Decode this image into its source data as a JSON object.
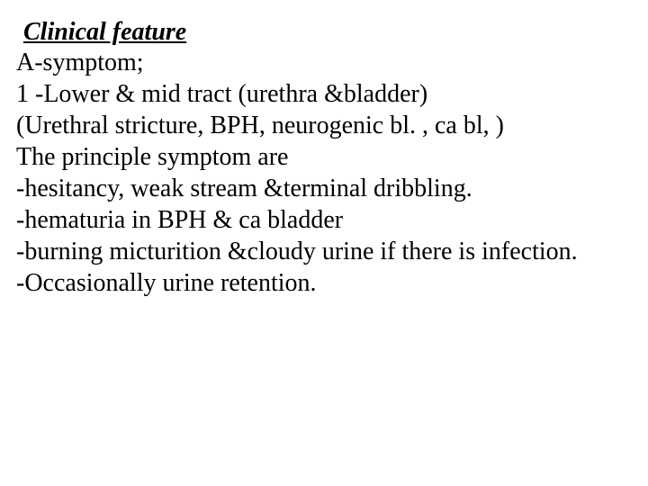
{
  "slide": {
    "heading": "Clinical feature",
    "lines": [
      "A-symptom;",
      " 1 -Lower & mid tract (urethra &bladder)",
      " (Urethral stricture, BPH, neurogenic bl. , ca bl, )",
      "The principle symptom are",
      "-hesitancy, weak stream &terminal dribbling.",
      "-hematuria in BPH & ca bladder",
      "-burning micturition &cloudy urine if there is infection.",
      "-Occasionally urine retention."
    ],
    "colors": {
      "background": "#ffffff",
      "text": "#000000"
    },
    "typography": {
      "font_family": "Times New Roman",
      "heading_fontsize": 28,
      "heading_style": "bold italic underline",
      "body_fontsize": 28
    }
  }
}
